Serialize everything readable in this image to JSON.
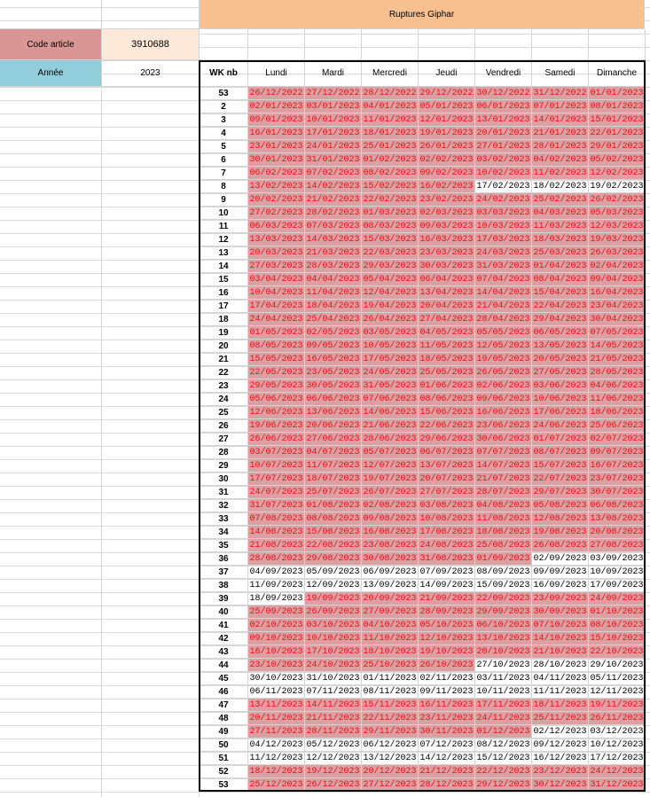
{
  "header": {
    "title": "Ruptures Giphar",
    "code_label": "Code article",
    "code_value": 3910688,
    "year_label": "Année",
    "year_value": 2023,
    "wk_header": "WK nb",
    "day_names": [
      "Lundi",
      "Mardi",
      "Mercredi",
      "Jeudi",
      "Vendredi",
      "Samedi",
      "Dimanche"
    ]
  },
  "table": {
    "rows": [
      {
        "wk": 53,
        "days": [
          "26/12/2022",
          "27/12/2022",
          "28/12/2022",
          "29/12/2022",
          "30/12/2022",
          "31/12/2022",
          "01/01/2023"
        ],
        "rupture": [
          1,
          1,
          1,
          1,
          1,
          1,
          1
        ]
      },
      {
        "wk": 2,
        "days": [
          "02/01/2023",
          "03/01/2023",
          "04/01/2023",
          "05/01/2023",
          "06/01/2023",
          "07/01/2023",
          "08/01/2023"
        ],
        "rupture": [
          1,
          1,
          1,
          1,
          1,
          1,
          1
        ]
      },
      {
        "wk": 3,
        "days": [
          "09/01/2023",
          "10/01/2023",
          "11/01/2023",
          "12/01/2023",
          "13/01/2023",
          "14/01/2023",
          "15/01/2023"
        ],
        "rupture": [
          1,
          1,
          1,
          1,
          1,
          1,
          1
        ]
      },
      {
        "wk": 4,
        "days": [
          "16/01/2023",
          "17/01/2023",
          "18/01/2023",
          "19/01/2023",
          "20/01/2023",
          "21/01/2023",
          "22/01/2023"
        ],
        "rupture": [
          1,
          1,
          1,
          1,
          1,
          1,
          1
        ]
      },
      {
        "wk": 5,
        "days": [
          "23/01/2023",
          "24/01/2023",
          "25/01/2023",
          "26/01/2023",
          "27/01/2023",
          "28/01/2023",
          "29/01/2023"
        ],
        "rupture": [
          1,
          1,
          1,
          1,
          1,
          1,
          1
        ]
      },
      {
        "wk": 6,
        "days": [
          "30/01/2023",
          "31/01/2023",
          "01/02/2023",
          "02/02/2023",
          "03/02/2023",
          "04/02/2023",
          "05/02/2023"
        ],
        "rupture": [
          1,
          1,
          1,
          1,
          1,
          1,
          1
        ]
      },
      {
        "wk": 7,
        "days": [
          "06/02/2023",
          "07/02/2023",
          "08/02/2023",
          "09/02/2023",
          "10/02/2023",
          "11/02/2023",
          "12/02/2023"
        ],
        "rupture": [
          1,
          1,
          1,
          1,
          1,
          1,
          1
        ]
      },
      {
        "wk": 8,
        "days": [
          "13/02/2023",
          "14/02/2023",
          "15/02/2023",
          "16/02/2023",
          "17/02/2023",
          "18/02/2023",
          "19/02/2023"
        ],
        "rupture": [
          1,
          1,
          1,
          1,
          0,
          0,
          0
        ]
      },
      {
        "wk": 9,
        "days": [
          "20/02/2023",
          "21/02/2023",
          "22/02/2023",
          "23/02/2023",
          "24/02/2023",
          "25/02/2023",
          "26/02/2023"
        ],
        "rupture": [
          1,
          1,
          1,
          1,
          1,
          1,
          1
        ]
      },
      {
        "wk": 10,
        "days": [
          "27/02/2023",
          "28/02/2023",
          "01/03/2023",
          "02/03/2023",
          "03/03/2023",
          "04/03/2023",
          "05/03/2023"
        ],
        "rupture": [
          1,
          1,
          1,
          1,
          1,
          1,
          1
        ]
      },
      {
        "wk": 11,
        "days": [
          "06/03/2023",
          "07/03/2023",
          "08/03/2023",
          "09/03/2023",
          "10/03/2023",
          "11/03/2023",
          "12/03/2023"
        ],
        "rupture": [
          1,
          1,
          1,
          1,
          1,
          1,
          1
        ]
      },
      {
        "wk": 12,
        "days": [
          "13/03/2023",
          "14/03/2023",
          "15/03/2023",
          "16/03/2023",
          "17/03/2023",
          "18/03/2023",
          "19/03/2023"
        ],
        "rupture": [
          1,
          1,
          1,
          1,
          1,
          1,
          1
        ]
      },
      {
        "wk": 13,
        "days": [
          "20/03/2023",
          "21/03/2023",
          "22/03/2023",
          "23/03/2023",
          "24/03/2023",
          "25/03/2023",
          "26/03/2023"
        ],
        "rupture": [
          1,
          1,
          1,
          1,
          1,
          1,
          1
        ]
      },
      {
        "wk": 14,
        "days": [
          "27/03/2023",
          "28/03/2023",
          "29/03/2023",
          "30/03/2023",
          "31/03/2023",
          "01/04/2023",
          "02/04/2023"
        ],
        "rupture": [
          1,
          1,
          1,
          1,
          1,
          1,
          1
        ]
      },
      {
        "wk": 15,
        "days": [
          "03/04/2023",
          "04/04/2023",
          "05/04/2023",
          "06/04/2023",
          "07/04/2023",
          "08/04/2023",
          "09/04/2023"
        ],
        "rupture": [
          1,
          1,
          1,
          1,
          1,
          1,
          1
        ]
      },
      {
        "wk": 16,
        "days": [
          "10/04/2023",
          "11/04/2023",
          "12/04/2023",
          "13/04/2023",
          "14/04/2023",
          "15/04/2023",
          "16/04/2023"
        ],
        "rupture": [
          1,
          1,
          1,
          1,
          1,
          1,
          1
        ]
      },
      {
        "wk": 17,
        "days": [
          "17/04/2023",
          "18/04/2023",
          "19/04/2023",
          "20/04/2023",
          "21/04/2023",
          "22/04/2023",
          "23/04/2023"
        ],
        "rupture": [
          1,
          1,
          1,
          1,
          1,
          1,
          1
        ]
      },
      {
        "wk": 18,
        "days": [
          "24/04/2023",
          "25/04/2023",
          "26/04/2023",
          "27/04/2023",
          "28/04/2023",
          "29/04/2023",
          "30/04/2023"
        ],
        "rupture": [
          1,
          1,
          1,
          1,
          1,
          1,
          1
        ]
      },
      {
        "wk": 19,
        "days": [
          "01/05/2023",
          "02/05/2023",
          "03/05/2023",
          "04/05/2023",
          "05/05/2023",
          "06/05/2023",
          "07/05/2023"
        ],
        "rupture": [
          1,
          1,
          1,
          1,
          1,
          1,
          1
        ]
      },
      {
        "wk": 20,
        "days": [
          "08/05/2023",
          "09/05/2023",
          "10/05/2023",
          "11/05/2023",
          "12/05/2023",
          "13/05/2023",
          "14/05/2023"
        ],
        "rupture": [
          1,
          1,
          1,
          1,
          1,
          1,
          1
        ]
      },
      {
        "wk": 21,
        "days": [
          "15/05/2023",
          "16/05/2023",
          "17/05/2023",
          "18/05/2023",
          "19/05/2023",
          "20/05/2023",
          "21/05/2023"
        ],
        "rupture": [
          1,
          1,
          1,
          1,
          1,
          1,
          1
        ]
      },
      {
        "wk": 22,
        "days": [
          "22/05/2023",
          "23/05/2023",
          "24/05/2023",
          "25/05/2023",
          "26/05/2023",
          "27/05/2023",
          "28/05/2023"
        ],
        "rupture": [
          1,
          1,
          1,
          1,
          1,
          1,
          1
        ]
      },
      {
        "wk": 23,
        "days": [
          "29/05/2023",
          "30/05/2023",
          "31/05/2023",
          "01/06/2023",
          "02/06/2023",
          "03/06/2023",
          "04/06/2023"
        ],
        "rupture": [
          1,
          1,
          1,
          1,
          1,
          1,
          1
        ]
      },
      {
        "wk": 24,
        "days": [
          "05/06/2023",
          "06/06/2023",
          "07/06/2023",
          "08/06/2023",
          "09/06/2023",
          "10/06/2023",
          "11/06/2023"
        ],
        "rupture": [
          1,
          1,
          1,
          1,
          1,
          1,
          1
        ]
      },
      {
        "wk": 25,
        "days": [
          "12/06/2023",
          "13/06/2023",
          "14/06/2023",
          "15/06/2023",
          "16/06/2023",
          "17/06/2023",
          "18/06/2023"
        ],
        "rupture": [
          1,
          1,
          1,
          1,
          1,
          1,
          1
        ]
      },
      {
        "wk": 26,
        "days": [
          "19/06/2023",
          "20/06/2023",
          "21/06/2023",
          "22/06/2023",
          "23/06/2023",
          "24/06/2023",
          "25/06/2023"
        ],
        "rupture": [
          1,
          1,
          1,
          1,
          1,
          1,
          1
        ]
      },
      {
        "wk": 27,
        "days": [
          "26/06/2023",
          "27/06/2023",
          "28/06/2023",
          "29/06/2023",
          "30/06/2023",
          "01/07/2023",
          "02/07/2023"
        ],
        "rupture": [
          1,
          1,
          1,
          1,
          1,
          1,
          1
        ]
      },
      {
        "wk": 28,
        "days": [
          "03/07/2023",
          "04/07/2023",
          "05/07/2023",
          "06/07/2023",
          "07/07/2023",
          "08/07/2023",
          "09/07/2023"
        ],
        "rupture": [
          1,
          1,
          1,
          1,
          1,
          1,
          1
        ]
      },
      {
        "wk": 29,
        "days": [
          "10/07/2023",
          "11/07/2023",
          "12/07/2023",
          "13/07/2023",
          "14/07/2023",
          "15/07/2023",
          "16/07/2023"
        ],
        "rupture": [
          1,
          1,
          1,
          1,
          1,
          1,
          1
        ]
      },
      {
        "wk": 30,
        "days": [
          "17/07/2023",
          "18/07/2023",
          "19/07/2023",
          "20/07/2023",
          "21/07/2023",
          "22/07/2023",
          "23/07/2023"
        ],
        "rupture": [
          1,
          1,
          1,
          1,
          1,
          1,
          1
        ]
      },
      {
        "wk": 31,
        "days": [
          "24/07/2023",
          "25/07/2023",
          "26/07/2023",
          "27/07/2023",
          "28/07/2023",
          "29/07/2023",
          "30/07/2023"
        ],
        "rupture": [
          1,
          1,
          1,
          1,
          1,
          1,
          1
        ]
      },
      {
        "wk": 32,
        "days": [
          "31/07/2023",
          "01/08/2023",
          "02/08/2023",
          "03/08/2023",
          "04/08/2023",
          "05/08/2023",
          "06/08/2023"
        ],
        "rupture": [
          1,
          1,
          1,
          1,
          1,
          1,
          1
        ]
      },
      {
        "wk": 33,
        "days": [
          "07/08/2023",
          "08/08/2023",
          "09/08/2023",
          "10/08/2023",
          "11/08/2023",
          "12/08/2023",
          "13/08/2023"
        ],
        "rupture": [
          1,
          1,
          1,
          1,
          1,
          1,
          1
        ]
      },
      {
        "wk": 34,
        "days": [
          "14/08/2023",
          "15/08/2023",
          "16/08/2023",
          "17/08/2023",
          "18/08/2023",
          "19/08/2023",
          "20/08/2023"
        ],
        "rupture": [
          1,
          1,
          1,
          1,
          1,
          1,
          1
        ]
      },
      {
        "wk": 35,
        "days": [
          "21/08/2023",
          "22/08/2023",
          "23/08/2023",
          "24/08/2023",
          "25/08/2023",
          "26/08/2023",
          "27/08/2023"
        ],
        "rupture": [
          1,
          1,
          1,
          1,
          1,
          1,
          1
        ]
      },
      {
        "wk": 36,
        "days": [
          "28/08/2023",
          "29/08/2023",
          "30/08/2023",
          "31/08/2023",
          "01/09/2023",
          "02/09/2023",
          "03/09/2023"
        ],
        "rupture": [
          1,
          1,
          1,
          1,
          1,
          0,
          0
        ]
      },
      {
        "wk": 37,
        "days": [
          "04/09/2023",
          "05/09/2023",
          "06/09/2023",
          "07/09/2023",
          "08/09/2023",
          "09/09/2023",
          "10/09/2023"
        ],
        "rupture": [
          0,
          0,
          0,
          0,
          0,
          0,
          0
        ]
      },
      {
        "wk": 38,
        "days": [
          "11/09/2023",
          "12/09/2023",
          "13/09/2023",
          "14/09/2023",
          "15/09/2023",
          "16/09/2023",
          "17/09/2023"
        ],
        "rupture": [
          0,
          0,
          0,
          0,
          0,
          0,
          0
        ]
      },
      {
        "wk": 39,
        "days": [
          "18/09/2023",
          "19/09/2023",
          "20/09/2023",
          "21/09/2023",
          "22/09/2023",
          "23/09/2023",
          "24/09/2023"
        ],
        "rupture": [
          0,
          1,
          1,
          1,
          1,
          1,
          1
        ]
      },
      {
        "wk": 40,
        "days": [
          "25/09/2023",
          "26/09/2023",
          "27/09/2023",
          "28/09/2023",
          "29/09/2023",
          "30/09/2023",
          "01/10/2023"
        ],
        "rupture": [
          1,
          1,
          1,
          1,
          1,
          1,
          1
        ]
      },
      {
        "wk": 41,
        "days": [
          "02/10/2023",
          "03/10/2023",
          "04/10/2023",
          "05/10/2023",
          "06/10/2023",
          "07/10/2023",
          "08/10/2023"
        ],
        "rupture": [
          1,
          1,
          1,
          1,
          1,
          1,
          1
        ]
      },
      {
        "wk": 42,
        "days": [
          "09/10/2023",
          "10/10/2023",
          "11/10/2023",
          "12/10/2023",
          "13/10/2023",
          "14/10/2023",
          "15/10/2023"
        ],
        "rupture": [
          1,
          1,
          1,
          1,
          1,
          1,
          1
        ]
      },
      {
        "wk": 43,
        "days": [
          "16/10/2023",
          "17/10/2023",
          "18/10/2023",
          "19/10/2023",
          "20/10/2023",
          "21/10/2023",
          "22/10/2023"
        ],
        "rupture": [
          1,
          1,
          1,
          1,
          1,
          1,
          1
        ]
      },
      {
        "wk": 44,
        "days": [
          "23/10/2023",
          "24/10/2023",
          "25/10/2023",
          "26/10/2023",
          "27/10/2023",
          "28/10/2023",
          "29/10/2023"
        ],
        "rupture": [
          1,
          1,
          1,
          1,
          0,
          0,
          0
        ]
      },
      {
        "wk": 45,
        "days": [
          "30/10/2023",
          "31/10/2023",
          "01/11/2023",
          "02/11/2023",
          "03/11/2023",
          "04/11/2023",
          "05/11/2023"
        ],
        "rupture": [
          0,
          0,
          0,
          0,
          0,
          0,
          0
        ]
      },
      {
        "wk": 46,
        "days": [
          "06/11/2023",
          "07/11/2023",
          "08/11/2023",
          "09/11/2023",
          "10/11/2023",
          "11/11/2023",
          "12/11/2023"
        ],
        "rupture": [
          0,
          0,
          0,
          0,
          0,
          0,
          0
        ]
      },
      {
        "wk": 47,
        "days": [
          "13/11/2023",
          "14/11/2023",
          "15/11/2023",
          "16/11/2023",
          "17/11/2023",
          "18/11/2023",
          "19/11/2023"
        ],
        "rupture": [
          1,
          1,
          1,
          1,
          1,
          1,
          1
        ]
      },
      {
        "wk": 48,
        "days": [
          "20/11/2023",
          "21/11/2023",
          "22/11/2023",
          "23/11/2023",
          "24/11/2023",
          "25/11/2023",
          "26/11/2023"
        ],
        "rupture": [
          1,
          1,
          1,
          1,
          1,
          1,
          1
        ]
      },
      {
        "wk": 49,
        "days": [
          "27/11/2023",
          "28/11/2023",
          "29/11/2023",
          "30/11/2023",
          "01/12/2023",
          "02/12/2023",
          "03/12/2023"
        ],
        "rupture": [
          1,
          1,
          1,
          1,
          1,
          0,
          0
        ]
      },
      {
        "wk": 50,
        "days": [
          "04/12/2023",
          "05/12/2023",
          "06/12/2023",
          "07/12/2023",
          "08/12/2023",
          "09/12/2023",
          "10/12/2023"
        ],
        "rupture": [
          0,
          0,
          0,
          0,
          0,
          0,
          0
        ]
      },
      {
        "wk": 51,
        "days": [
          "11/12/2023",
          "12/12/2023",
          "13/12/2023",
          "14/12/2023",
          "15/12/2023",
          "16/12/2023",
          "17/12/2023"
        ],
        "rupture": [
          0,
          0,
          0,
          0,
          0,
          0,
          0
        ]
      },
      {
        "wk": 52,
        "days": [
          "18/12/2023",
          "19/12/2023",
          "20/12/2023",
          "21/12/2023",
          "22/12/2023",
          "23/12/2023",
          "24/12/2023"
        ],
        "rupture": [
          1,
          1,
          1,
          1,
          1,
          1,
          1
        ]
      },
      {
        "wk": 53,
        "days": [
          "25/12/2023",
          "26/12/2023",
          "27/12/2023",
          "28/12/2023",
          "29/12/2023",
          "30/12/2023",
          "31/12/2023"
        ],
        "rupture": [
          1,
          1,
          1,
          1,
          1,
          1,
          1
        ]
      }
    ]
  }
}
